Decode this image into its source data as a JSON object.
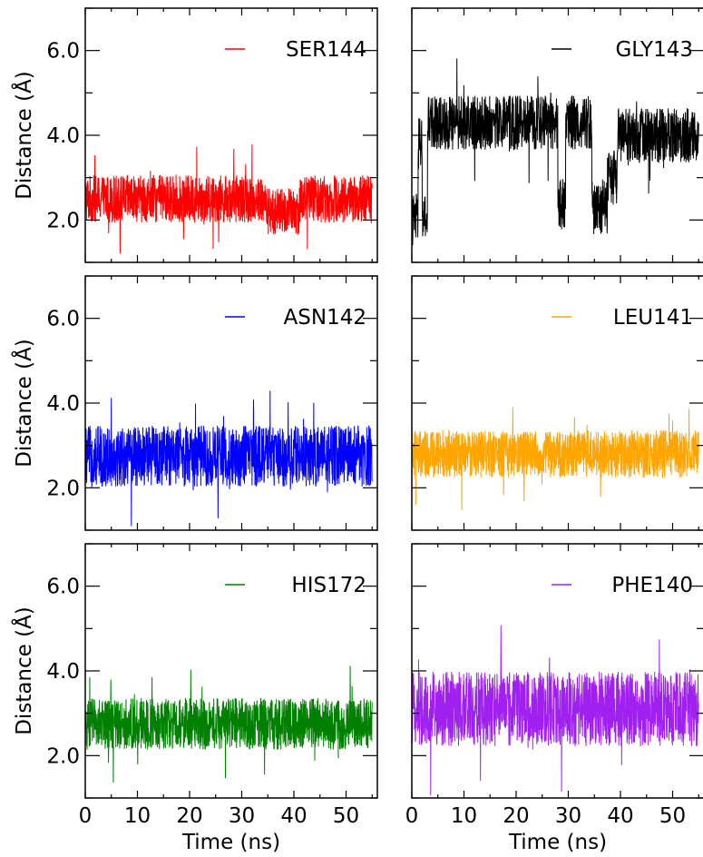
{
  "figure": {
    "ylabel": "Distance (Å)",
    "xlabel": "Time (ns)"
  },
  "chart_data": [
    {
      "type": "line",
      "panel": "top-left",
      "legend_placement": "top-right",
      "series": [
        {
          "name": "SER144",
          "color": "#ff0000",
          "baseline": 2.5,
          "spread": 0.35,
          "shift": [
            {
              "from": 34.5,
              "to": 41,
              "value": 2.2
            }
          ]
        }
      ],
      "xlim": [
        0,
        56
      ],
      "ylim": [
        1,
        7
      ],
      "xticks": [
        0,
        10,
        20,
        30,
        40,
        50
      ],
      "xtick_labels": [
        "0",
        "10",
        "20",
        "30",
        "40",
        "50"
      ],
      "yticks": [
        2,
        4,
        6
      ],
      "ytick_labels": [
        "2.0",
        "4.0",
        "6.0"
      ],
      "xlabel": "",
      "ylabel": "Distance (Å)",
      "grid": false
    },
    {
      "type": "line",
      "panel": "top-right",
      "legend_placement": "top-right",
      "series": [
        {
          "name": "GLY143",
          "color": "#000000",
          "baseline": 4.3,
          "spread": 0.4,
          "shift": [
            {
              "from": 0,
              "to": 1.2,
              "value": 2.0
            },
            {
              "from": 1.2,
              "to": 2,
              "value": 3.8
            },
            {
              "from": 2,
              "to": 3,
              "value": 2.0
            },
            {
              "from": 28,
              "to": 29.5,
              "value": 2.4
            },
            {
              "from": 34.5,
              "to": 37.5,
              "value": 2.3
            },
            {
              "from": 37.5,
              "to": 39.5,
              "value": 3.0
            },
            {
              "from": 40,
              "to": 56,
              "value": 4.0
            }
          ]
        }
      ],
      "xlim": [
        0,
        56
      ],
      "ylim": [
        1,
        7
      ],
      "xticks": [
        0,
        10,
        20,
        30,
        40,
        50
      ],
      "xtick_labels": [
        "0",
        "10",
        "20",
        "30",
        "40",
        "50"
      ],
      "yticks": [
        2,
        4,
        6
      ],
      "ytick_labels": [
        "2.0",
        "4.0",
        "6.0"
      ],
      "xlabel": "",
      "ylabel": "",
      "grid": false
    },
    {
      "type": "line",
      "panel": "middle-left",
      "legend_placement": "top-right",
      "series": [
        {
          "name": "ASN142",
          "color": "#0000ff",
          "baseline": 2.75,
          "spread": 0.45,
          "shift": []
        }
      ],
      "xlim": [
        0,
        56
      ],
      "ylim": [
        1,
        7
      ],
      "xticks": [
        0,
        10,
        20,
        30,
        40,
        50
      ],
      "xtick_labels": [
        "0",
        "10",
        "20",
        "30",
        "40",
        "50"
      ],
      "yticks": [
        2,
        4,
        6
      ],
      "ytick_labels": [
        "2.0",
        "4.0",
        "6.0"
      ],
      "xlabel": "",
      "ylabel": "Distance (Å)",
      "grid": false
    },
    {
      "type": "line",
      "panel": "middle-right",
      "legend_placement": "top-right",
      "series": [
        {
          "name": "LEU141",
          "color": "#ffa500",
          "baseline": 2.8,
          "spread": 0.35,
          "shift": []
        }
      ],
      "xlim": [
        0,
        56
      ],
      "ylim": [
        1,
        7
      ],
      "xticks": [
        0,
        10,
        20,
        30,
        40,
        50
      ],
      "xtick_labels": [
        "0",
        "10",
        "20",
        "30",
        "40",
        "50"
      ],
      "yticks": [
        2,
        4,
        6
      ],
      "ytick_labels": [
        "2.0",
        "4.0",
        "6.0"
      ],
      "xlabel": "",
      "ylabel": "",
      "grid": false
    },
    {
      "type": "line",
      "panel": "bottom-left",
      "legend_placement": "top-right",
      "series": [
        {
          "name": "HIS172",
          "color": "#008000",
          "baseline": 2.75,
          "spread": 0.38,
          "shift": []
        }
      ],
      "xlim": [
        0,
        56
      ],
      "ylim": [
        1,
        7
      ],
      "xticks": [
        0,
        10,
        20,
        30,
        40,
        50
      ],
      "xtick_labels": [
        "0",
        "10",
        "20",
        "30",
        "40",
        "50"
      ],
      "yticks": [
        2,
        4,
        6
      ],
      "ytick_labels": [
        "2.0",
        "4.0",
        "6.0"
      ],
      "xlabel": "Time (ns)",
      "ylabel": "Distance (Å)",
      "grid": false
    },
    {
      "type": "line",
      "panel": "bottom-right",
      "legend_placement": "top-right",
      "series": [
        {
          "name": "PHE140",
          "color": "#a020f0",
          "baseline": 3.1,
          "spread": 0.55,
          "shift": []
        }
      ],
      "xlim": [
        0,
        56
      ],
      "ylim": [
        1,
        7
      ],
      "xticks": [
        0,
        10,
        20,
        30,
        40,
        50
      ],
      "xtick_labels": [
        "0",
        "10",
        "20",
        "30",
        "40",
        "50"
      ],
      "yticks": [
        2,
        4,
        6
      ],
      "ytick_labels": [
        "2.0",
        "4.0",
        "6.0"
      ],
      "xlabel": "Time (ns)",
      "ylabel": "",
      "grid": false
    }
  ]
}
